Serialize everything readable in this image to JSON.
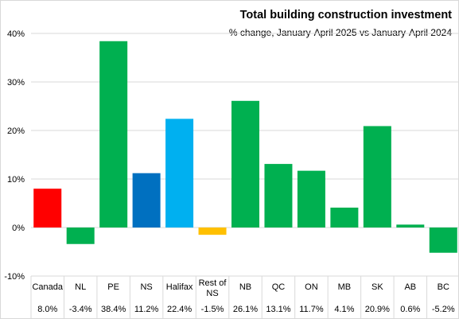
{
  "chart_data": {
    "type": "bar",
    "title": "Total building construction investment",
    "subtitle": "% change, January-April 2025 vs January-April 2024",
    "categories": [
      "Canada",
      "NL",
      "PE",
      "NS",
      "Halifax",
      "Rest of NS",
      "NB",
      "QC",
      "ON",
      "MB",
      "SK",
      "AB",
      "BC"
    ],
    "category_lines": [
      [
        "Canada"
      ],
      [
        "NL"
      ],
      [
        "PE"
      ],
      [
        "NS"
      ],
      [
        "Halifax"
      ],
      [
        "Rest of",
        "NS"
      ],
      [
        "NB"
      ],
      [
        "QC"
      ],
      [
        "ON"
      ],
      [
        "MB"
      ],
      [
        "SK"
      ],
      [
        "AB"
      ],
      [
        "BC"
      ]
    ],
    "values": [
      8.0,
      -3.4,
      38.4,
      11.2,
      22.4,
      -1.5,
      26.1,
      13.1,
      11.7,
      4.1,
      20.9,
      0.6,
      -5.2
    ],
    "value_labels": [
      "8.0%",
      "-3.4%",
      "38.4%",
      "11.2%",
      "22.4%",
      "-1.5%",
      "26.1%",
      "13.1%",
      "11.7%",
      "4.1%",
      "20.9%",
      "0.6%",
      "-5.2%"
    ],
    "bar_colors": [
      "#ff0000",
      "#00b050",
      "#00b050",
      "#0070c0",
      "#00b0f0",
      "#ffc000",
      "#00b050",
      "#00b050",
      "#00b050",
      "#00b050",
      "#00b050",
      "#00b050",
      "#00b050"
    ],
    "ylim": [
      -10,
      40
    ],
    "yticks": [
      -10,
      0,
      10,
      20,
      30,
      40
    ],
    "ytick_labels": [
      "-10%",
      "0%",
      "10%",
      "20%",
      "30%",
      "40%"
    ],
    "grid": true,
    "gridline_color": "#d9d9d9"
  }
}
